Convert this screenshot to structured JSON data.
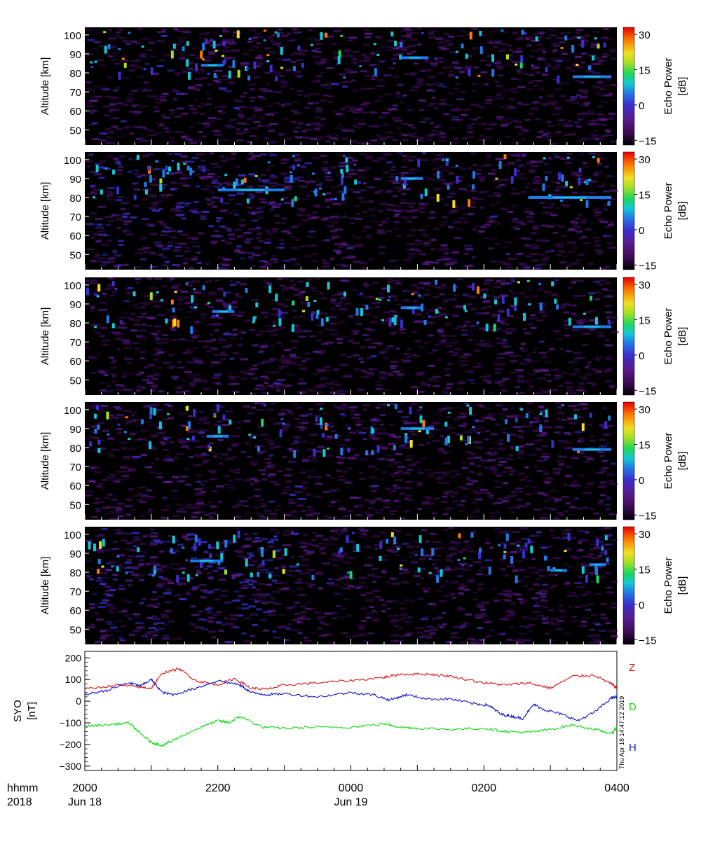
{
  "colors": {
    "background_panel": "#000000",
    "colormap": [
      "#000000",
      "#3a0a52",
      "#5a1a8c",
      "#3a2fd0",
      "#1f7ae8",
      "#12c8d8",
      "#18d860",
      "#a8e020",
      "#f0e020",
      "#ff7a00",
      "#e80000"
    ],
    "Z": "#d81414",
    "D": "#10d810",
    "H": "#1414c8"
  },
  "panels": [
    {
      "ylabel": "Altitude [km]",
      "cbar_label_line1": "Echo Power",
      "cbar_label_line2": "[dB]"
    },
    {
      "ylabel": "Altitude [km]",
      "cbar_label_line1": "Echo Power",
      "cbar_label_line2": "[dB]"
    },
    {
      "ylabel": "Altitude [km]",
      "cbar_label_line1": "Echo Power",
      "cbar_label_line2": "[dB]"
    },
    {
      "ylabel": "Altitude [km]",
      "cbar_label_line1": "Echo Power",
      "cbar_label_line2": "[dB]"
    },
    {
      "ylabel": "Altitude [km]",
      "cbar_label_line1": "Echo Power",
      "cbar_label_line2": "[dB]"
    }
  ],
  "mag_panel": {
    "ylabel_line1": "SYO",
    "ylabel_line2": "[nT]",
    "series_labels": [
      "Z",
      "D",
      "H"
    ],
    "timestamp": "Thu Apr 18 14:47:12 2019"
  },
  "time_axis": {
    "hhmm_label": "hhmm",
    "year_label": "2018",
    "ticks": [
      "2000",
      "2200",
      "0000",
      "0200",
      "0400"
    ],
    "dates": [
      "Jun 18",
      "Jun 19"
    ]
  },
  "chart_data": [
    {
      "type": "heatmap",
      "note_panels": 5,
      "x_axis": {
        "type": "time",
        "start": "2018-06-18 20:00",
        "end": "2018-06-19 04:00",
        "ticks": [
          "2000",
          "2200",
          "0000",
          "0200",
          "0400"
        ]
      },
      "y_axis": {
        "label": "Altitude [km]",
        "range": [
          42,
          104
        ],
        "ticks": [
          50,
          60,
          70,
          80,
          90,
          100
        ]
      },
      "colorbar": {
        "label": "Echo Power [dB]",
        "range": [
          -17,
          33
        ],
        "ticks": [
          -15,
          0,
          15,
          30
        ]
      },
      "layers": [
        {
          "panel": 1,
          "main_layer_km": [
            {
              "from": "21:45",
              "to": "22:05",
              "alt_km": 84
            },
            {
              "from": "00:45",
              "to": "01:10",
              "alt_km": 88
            },
            {
              "from": "03:20",
              "to": "03:55",
              "alt_km": 78
            }
          ]
        },
        {
          "panel": 2,
          "main_layer_km": [
            {
              "from": "22:00",
              "to": "23:00",
              "alt_km": 84
            },
            {
              "from": "00:45",
              "to": "01:05",
              "alt_km": 90
            },
            {
              "from": "02:40",
              "to": "03:55",
              "alt_km": 80
            }
          ]
        },
        {
          "panel": 3,
          "main_layer_km": [
            {
              "from": "21:55",
              "to": "22:15",
              "alt_km": 86
            },
            {
              "from": "00:45",
              "to": "01:05",
              "alt_km": 88
            },
            {
              "from": "03:20",
              "to": "03:55",
              "alt_km": 78
            }
          ]
        },
        {
          "panel": 4,
          "main_layer_km": [
            {
              "from": "21:50",
              "to": "22:10",
              "alt_km": 86
            },
            {
              "from": "00:45",
              "to": "01:15",
              "alt_km": 90
            },
            {
              "from": "03:20",
              "to": "03:55",
              "alt_km": 79
            }
          ]
        },
        {
          "panel": 5,
          "main_layer_km": [
            {
              "from": "21:35",
              "to": "22:05",
              "alt_km": 86
            },
            {
              "from": "03:00",
              "to": "03:15",
              "alt_km": 81
            },
            {
              "from": "03:35",
              "to": "03:50",
              "alt_km": 84
            }
          ]
        }
      ]
    },
    {
      "type": "line",
      "x_axis": {
        "type": "time",
        "start": "2018-06-18 20:00",
        "end": "2018-06-19 04:00"
      },
      "y_axis": {
        "label": "SYO [nT]",
        "range": [
          -320,
          230
        ],
        "ticks": [
          -300,
          -200,
          -100,
          0,
          100,
          200
        ]
      },
      "series": [
        {
          "name": "Z",
          "x": [
            "20:00",
            "20:30",
            "20:50",
            "21:00",
            "21:10",
            "21:25",
            "21:40",
            "22:00",
            "22:15",
            "22:30",
            "22:45",
            "23:00",
            "23:30",
            "00:00",
            "00:30",
            "00:45",
            "01:10",
            "01:30",
            "02:00",
            "02:20",
            "02:40",
            "03:00",
            "03:20",
            "03:40",
            "03:55",
            "04:00"
          ],
          "values": [
            55,
            75,
            65,
            60,
            130,
            150,
            95,
            75,
            105,
            60,
            55,
            75,
            85,
            95,
            110,
            125,
            125,
            115,
            85,
            75,
            85,
            60,
            115,
            120,
            80,
            60
          ]
        },
        {
          "name": "H",
          "x": [
            "20:00",
            "20:20",
            "20:40",
            "20:50",
            "21:00",
            "21:10",
            "21:20",
            "21:40",
            "22:00",
            "22:20",
            "22:30",
            "22:45",
            "23:00",
            "23:30",
            "00:00",
            "00:20",
            "00:35",
            "00:50",
            "01:10",
            "01:30",
            "01:50",
            "02:05",
            "02:15",
            "02:25",
            "02:35",
            "02:45",
            "02:55",
            "03:10",
            "03:25",
            "03:40",
            "03:55",
            "04:00"
          ],
          "values": [
            30,
            50,
            85,
            70,
            100,
            40,
            30,
            60,
            95,
            75,
            40,
            30,
            35,
            20,
            40,
            30,
            5,
            30,
            10,
            10,
            -10,
            -20,
            -60,
            -70,
            -80,
            -15,
            -40,
            -60,
            -90,
            -50,
            15,
            20
          ]
        },
        {
          "name": "D",
          "x": [
            "20:00",
            "20:20",
            "20:40",
            "20:50",
            "21:00",
            "21:10",
            "21:20",
            "21:40",
            "22:00",
            "22:10",
            "22:20",
            "22:40",
            "23:00",
            "23:30",
            "00:00",
            "00:30",
            "00:45",
            "01:00",
            "01:30",
            "02:00",
            "02:20",
            "02:40",
            "03:00",
            "03:20",
            "03:40",
            "03:55",
            "04:00"
          ],
          "values": [
            -115,
            -110,
            -100,
            -150,
            -190,
            -205,
            -180,
            -130,
            -90,
            -100,
            -70,
            -120,
            -125,
            -120,
            -120,
            -105,
            -120,
            -125,
            -130,
            -125,
            -140,
            -145,
            -130,
            -110,
            -130,
            -150,
            -120
          ]
        }
      ]
    }
  ]
}
